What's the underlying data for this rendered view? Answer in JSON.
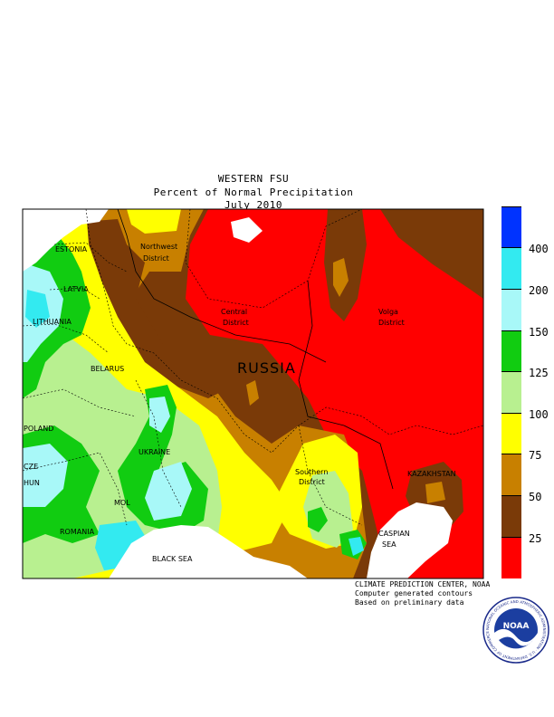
{
  "title": {
    "line1": "WESTERN FSU",
    "line2": "Percent of Normal Precipitation",
    "line3": "July 2010"
  },
  "map_labels": {
    "estonia": "ESTONIA",
    "latvia": "LATVIA",
    "lithuania": "LITHUANIA",
    "belarus": "BELARUS",
    "poland": "POLAND",
    "czech": "CZE",
    "hungary": "HUN",
    "ukraine": "UKRAINE",
    "moldova": "MOL",
    "romania": "ROMANIA",
    "black_sea": "BLACK SEA",
    "russia": "RUSSIA",
    "northwest_1": "Northwest",
    "northwest_2": "District",
    "central_1": "Central",
    "central_2": "District",
    "volga_1": "Volga",
    "volga_2": "District",
    "southern_1": "Southern",
    "southern_2": "District",
    "kazakhstan": "KAZAKHSTAN",
    "caspian_1": "CASPIAN",
    "caspian_2": "SEA"
  },
  "legend": {
    "labels": [
      "400",
      "200",
      "150",
      "125",
      "100",
      "75",
      "50",
      "25"
    ],
    "colors": [
      "#0033ff",
      "#33eaf0",
      "#a8f8f8",
      "#11cc11",
      "#b8f090",
      "#ffff00",
      "#c88000",
      "#7a3a08",
      "#ff0000"
    ]
  },
  "credit": {
    "line1": "CLIMATE PREDICTION CENTER, NOAA",
    "line2": "Computer generated contours",
    "line3": "Based on preliminary data"
  },
  "logo": {
    "text": "NOAA",
    "ring_text": "NATIONAL OCEANIC AND ATMOSPHERIC ADMINISTRATION · U.S. DEPARTMENT OF COMMERCE"
  }
}
